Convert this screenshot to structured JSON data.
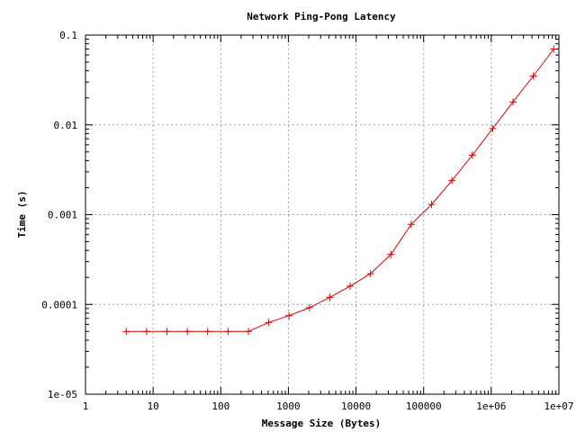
{
  "chart_data": {
    "type": "line",
    "title": "Network Ping-Pong Latency",
    "xlabel": "Message Size (Bytes)",
    "ylabel": "Time (s)",
    "x_scale": "log",
    "y_scale": "log",
    "xlim": [
      1,
      10000000
    ],
    "ylim": [
      1e-05,
      0.1
    ],
    "x_ticks": [
      {
        "value": 1,
        "label": "1"
      },
      {
        "value": 10,
        "label": "10"
      },
      {
        "value": 100,
        "label": "100"
      },
      {
        "value": 1000,
        "label": "1000"
      },
      {
        "value": 10000,
        "label": "10000"
      },
      {
        "value": 100000,
        "label": "100000"
      },
      {
        "value": 1000000,
        "label": "1e+06"
      },
      {
        "value": 10000000,
        "label": "1e+07"
      }
    ],
    "y_ticks": [
      {
        "value": 1e-05,
        "label": "1e-05"
      },
      {
        "value": 0.0001,
        "label": "0.0001"
      },
      {
        "value": 0.001,
        "label": "0.001"
      },
      {
        "value": 0.01,
        "label": "0.01"
      },
      {
        "value": 0.1,
        "label": "0.1"
      }
    ],
    "grid": true,
    "series": [
      {
        "color": "#dd0000",
        "marker": "plus",
        "points": [
          [
            4,
            5e-05
          ],
          [
            8,
            5e-05
          ],
          [
            16,
            5e-05
          ],
          [
            32,
            5e-05
          ],
          [
            64,
            5e-05
          ],
          [
            128,
            5e-05
          ],
          [
            256,
            5e-05
          ],
          [
            512,
            6.3e-05
          ],
          [
            1024,
            7.5e-05
          ],
          [
            2048,
            9.2e-05
          ],
          [
            4096,
            0.00012
          ],
          [
            8192,
            0.00016
          ],
          [
            16384,
            0.00022
          ],
          [
            32768,
            0.00036
          ],
          [
            65536,
            0.00078
          ],
          [
            131072,
            0.0013
          ],
          [
            262144,
            0.0024
          ],
          [
            524288,
            0.0046
          ],
          [
            1048576,
            0.0091
          ],
          [
            2097152,
            0.018
          ],
          [
            4194304,
            0.035
          ],
          [
            8388608,
            0.07
          ]
        ]
      }
    ]
  }
}
